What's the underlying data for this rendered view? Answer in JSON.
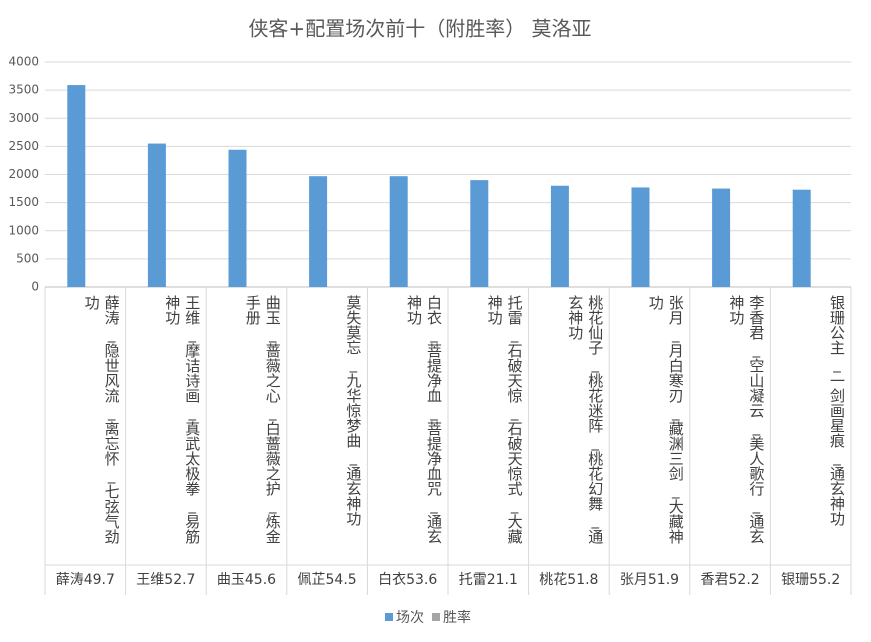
{
  "chart_data": {
    "type": "bar",
    "title": "侠客+配置场次前十（附胜率） 莫洛亚",
    "categories": [
      "薛涛_隐世风流_离忘怀_七弦气劲功",
      "王维_摩诘诗画_真武太极拳_易筋神功",
      "曲玉_蔷薇之心_白蔷薇之护_炼金手册",
      "莫失莫忘_九华惊梦曲_通玄神功",
      "白衣_菩提净血_菩提净血咒_通玄神功",
      "托雷_石破天惊_石破天惊式_大藏神功",
      "桃花仙子_桃花迷阵_桃花幻舞_通玄神功",
      "张月_月白寒刃_藏渊三剑_大藏神功",
      "李香君_空山凝云_美人歌行_通玄神功",
      "银珊公主_一剑画星痕_通玄神功"
    ],
    "groups": [
      "薛涛49.7",
      "王维52.7",
      "曲玉45.6",
      "佩芷54.5",
      "白衣53.6",
      "托雷21.1",
      "桃花51.8",
      "张月51.9",
      "香君52.2",
      "银珊55.2"
    ],
    "series": [
      {
        "name": "场次",
        "color": "#5b9bd5",
        "values": [
          3590,
          2550,
          2440,
          1970,
          1970,
          1900,
          1800,
          1770,
          1750,
          1730
        ]
      },
      {
        "name": "胜率",
        "color": "#a5a5a5",
        "values": [
          null,
          null,
          null,
          null,
          null,
          null,
          null,
          null,
          null,
          null
        ]
      }
    ],
    "ylim": [
      0,
      4000
    ],
    "yticks": [
      0,
      500,
      1000,
      1500,
      2000,
      2500,
      3000,
      3500,
      4000
    ],
    "grid": true,
    "legend": "bottom"
  }
}
